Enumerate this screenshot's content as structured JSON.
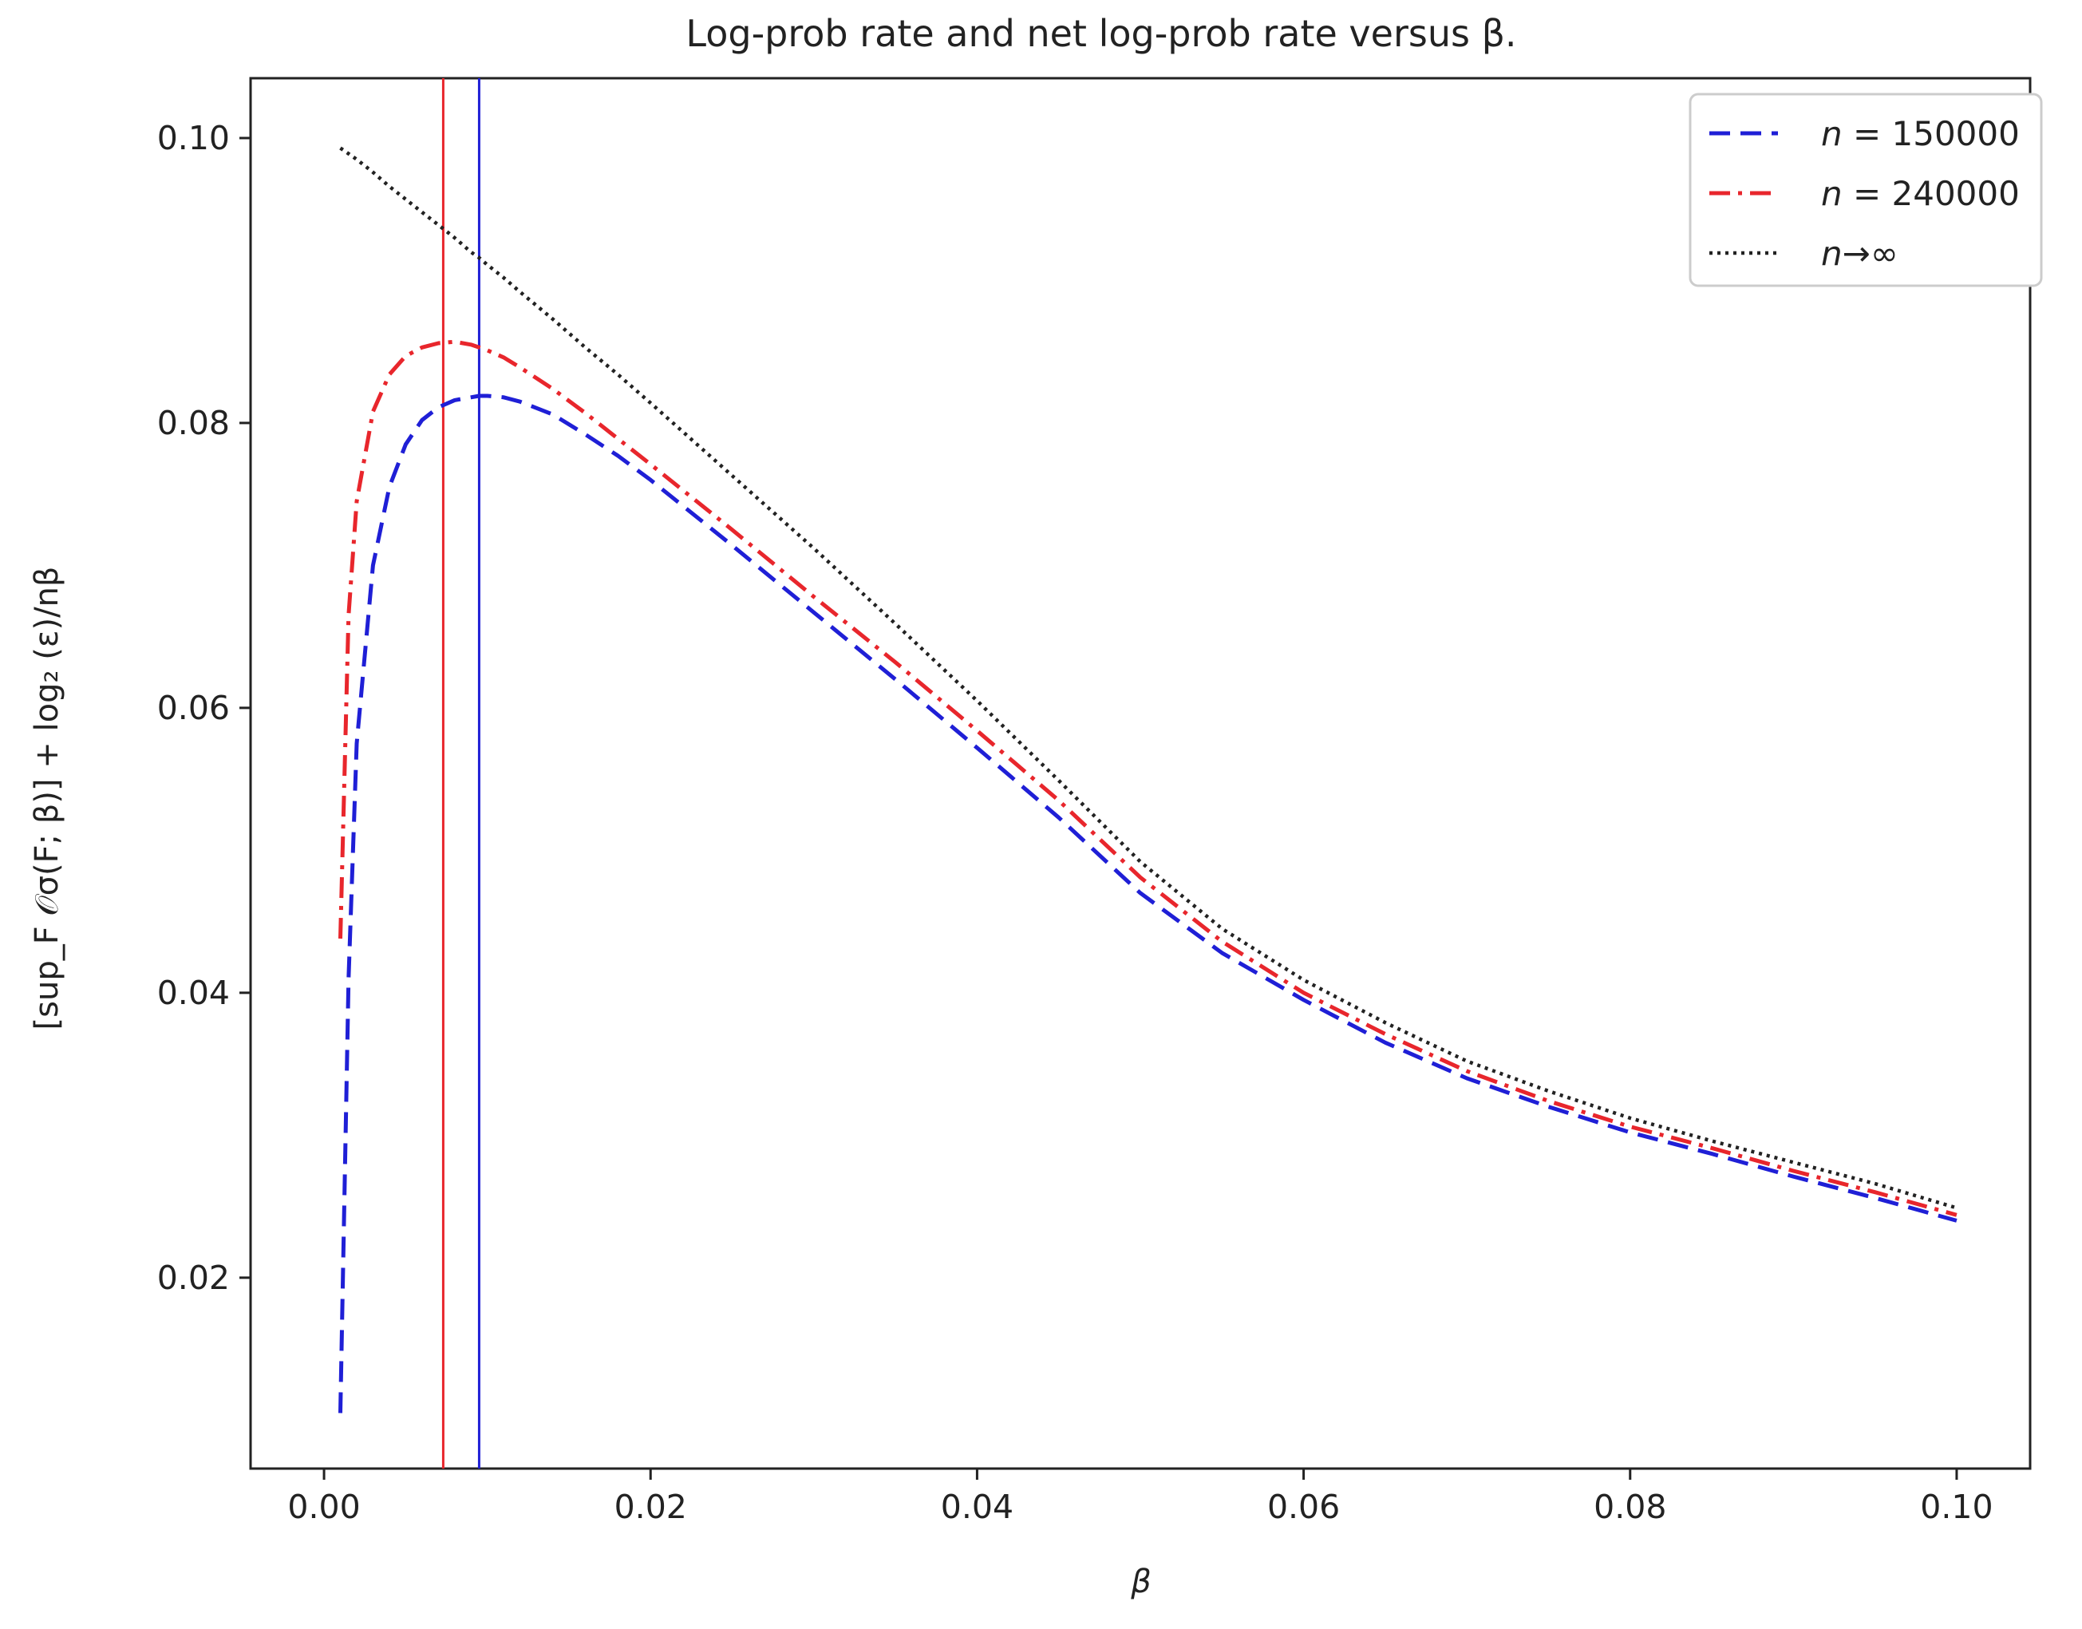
{
  "chart_data": {
    "type": "line",
    "title": "Log-prob rate and net log-prob rate versus β.",
    "xlabel": "β",
    "ylabel": "[sup_F 𝒪σ(F; β)] + log₂ (ε)/nβ",
    "xlim": [
      -0.0045,
      0.1045
    ],
    "ylim": [
      0.0066,
      0.1042
    ],
    "x_ticks": [
      0.0,
      0.02,
      0.04,
      0.06,
      0.08,
      0.1
    ],
    "y_ticks": [
      0.02,
      0.04,
      0.06,
      0.08,
      0.1
    ],
    "x_tick_labels": [
      "0.00",
      "0.02",
      "0.04",
      "0.06",
      "0.08",
      "0.10"
    ],
    "y_tick_labels": [
      "0.02",
      "0.04",
      "0.06",
      "0.08",
      "0.10"
    ],
    "grid": false,
    "legend_position": "top-right",
    "x": [
      0.001,
      0.0015,
      0.002,
      0.003,
      0.004,
      0.005,
      0.006,
      0.007,
      0.008,
      0.009,
      0.0095,
      0.01,
      0.011,
      0.012,
      0.014,
      0.016,
      0.018,
      0.02,
      0.025,
      0.03,
      0.035,
      0.04,
      0.045,
      0.05,
      0.055,
      0.06,
      0.065,
      0.07,
      0.075,
      0.08,
      0.085,
      0.09,
      0.095,
      0.1
    ],
    "series": [
      {
        "name": "n = 150000",
        "prefix": "n",
        "value": "= 150000",
        "color": "#1f1fd6",
        "style": "dashed",
        "values": [
          0.0105,
          0.041,
          0.0575,
          0.07,
          0.0755,
          0.0785,
          0.0802,
          0.0811,
          0.0816,
          0.0818,
          0.0819,
          0.0819,
          0.0818,
          0.0815,
          0.0806,
          0.0792,
          0.0777,
          0.076,
          0.0714,
          0.0667,
          0.062,
          0.0572,
          0.0523,
          0.047,
          0.0428,
          0.0395,
          0.0365,
          0.034,
          0.032,
          0.0302,
          0.0287,
          0.0271,
          0.0256,
          0.024
        ]
      },
      {
        "name": "n = 240000",
        "prefix": "n",
        "value": "= 240000",
        "color": "#e8262c",
        "style": "dashdot",
        "values": [
          0.0438,
          0.0665,
          0.0745,
          0.0808,
          0.0834,
          0.0847,
          0.0853,
          0.0856,
          0.0857,
          0.0855,
          0.0853,
          0.0851,
          0.0846,
          0.0839,
          0.0824,
          0.0807,
          0.0789,
          0.0771,
          0.0725,
          0.0678,
          0.0632,
          0.0584,
          0.0535,
          0.0481,
          0.0436,
          0.04,
          0.0371,
          0.0345,
          0.0324,
          0.0306,
          0.0291,
          0.0275,
          0.026,
          0.0244
        ]
      },
      {
        "name": "n→∞",
        "prefix": "n",
        "value": "→∞",
        "color": "#222222",
        "style": "dotted",
        "values": [
          0.0993,
          0.0989,
          0.0985,
          0.0976,
          0.0966,
          0.0957,
          0.0948,
          0.0939,
          0.093,
          0.092,
          0.0916,
          0.0911,
          0.0902,
          0.0892,
          0.0873,
          0.0853,
          0.0834,
          0.0814,
          0.0763,
          0.0712,
          0.0659,
          0.0605,
          0.0549,
          0.0492,
          0.0445,
          0.0409,
          0.0379,
          0.0352,
          0.0331,
          0.0312,
          0.0296,
          0.0281,
          0.0266,
          0.0249
        ]
      }
    ],
    "vertical_lines": [
      {
        "name": "n = 240000 optimum",
        "x": 0.0073,
        "color": "#e8262c"
      },
      {
        "name": "n = 150000 optimum",
        "x": 0.0095,
        "color": "#1f1fd6"
      }
    ]
  }
}
